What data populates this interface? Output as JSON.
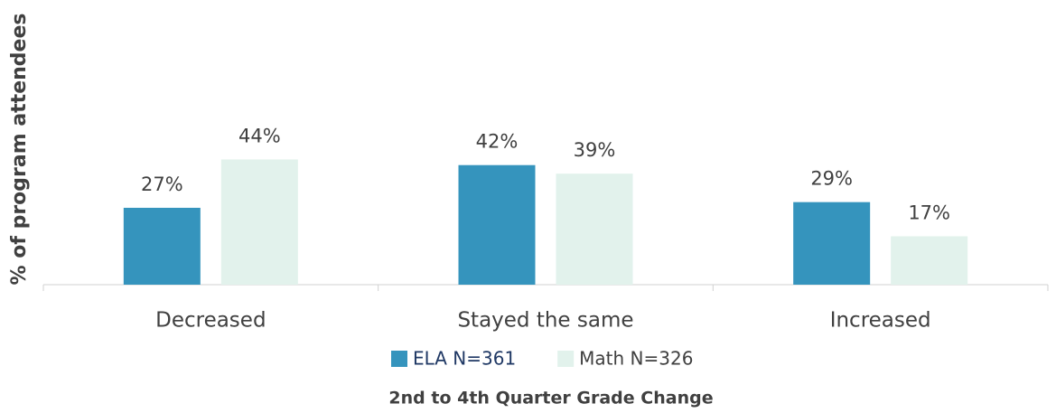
{
  "chart_data": {
    "type": "bar",
    "x_label": "2nd to 4th Quarter Grade Change",
    "y_label": "% of program attendees",
    "categories": [
      "Decreased",
      "Stayed the same",
      "Increased"
    ],
    "series": [
      {
        "name": "ELA N=361",
        "color": "#3594bd",
        "values": [
          27,
          42,
          29
        ],
        "value_labels": [
          "27%",
          "42%",
          "29%"
        ]
      },
      {
        "name": "Math N=326",
        "color": "#e2f2ec",
        "values": [
          44,
          39,
          17
        ],
        "value_labels": [
          "44%",
          "39%",
          "17%"
        ]
      }
    ],
    "ylim": [
      0,
      100
    ],
    "legend": "bottom"
  }
}
